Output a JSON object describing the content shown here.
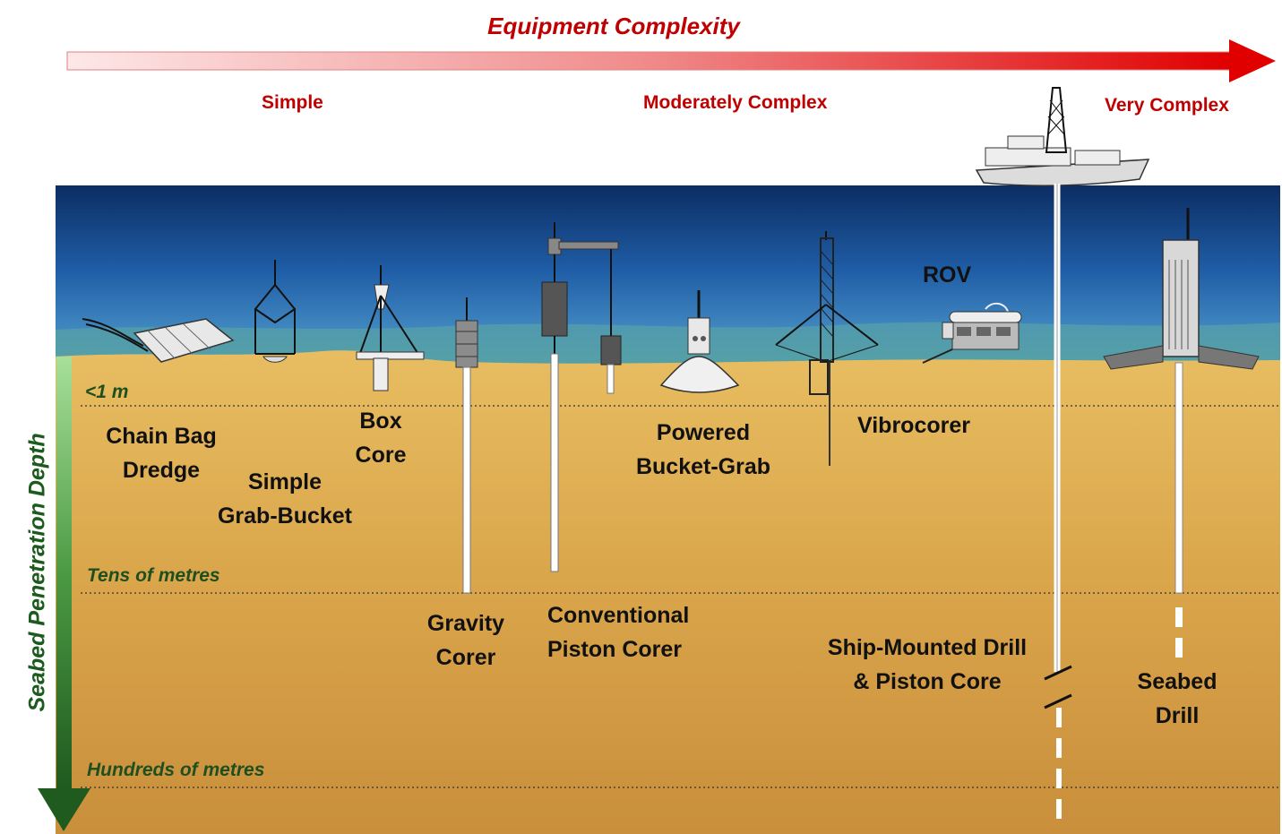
{
  "header": {
    "title": "Equipment Complexity",
    "levels": {
      "simple": "Simple",
      "moderate": "Moderately Complex",
      "very": "Very Complex"
    }
  },
  "axis": {
    "label": "Seabed Penetration Depth",
    "depths": {
      "shallow": "<1 m",
      "tens": "Tens of metres",
      "hundreds": "Hundreds of metres"
    }
  },
  "equipment": {
    "rov": "ROV",
    "chain_bag_1": "Chain Bag",
    "chain_bag_2": "Dredge",
    "simple_grab_1": "Simple",
    "simple_grab_2": "Grab-Bucket",
    "box_core_1": "Box",
    "box_core_2": "Core",
    "powered_grab_1": "Powered",
    "powered_grab_2": "Bucket-Grab",
    "vibrocorer": "Vibrocorer",
    "gravity_1": "Gravity",
    "gravity_2": "Corer",
    "piston_1": "Conventional",
    "piston_2": "Piston Corer",
    "ship_drill_1": "Ship-Mounted Drill",
    "ship_drill_2": "& Piston Core",
    "seabed_drill_1": "Seabed",
    "seabed_drill_2": "Drill"
  },
  "colors": {
    "accent_red": "#c00000",
    "water_top": "#0c2d63",
    "water_mid": "#2a6fb0",
    "sediment": "#d9a84c",
    "axis_green": "#1d5a1d"
  }
}
